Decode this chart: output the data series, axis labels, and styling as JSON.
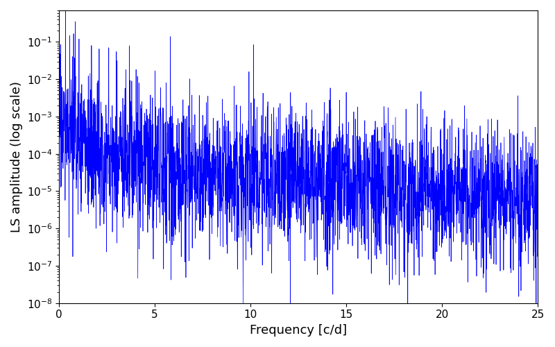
{
  "xlabel": "Frequency [c/d]",
  "ylabel": "LS amplitude (log scale)",
  "xlim": [
    0,
    25
  ],
  "ylim": [
    1e-08,
    0.7
  ],
  "line_color": "blue",
  "line_width": 0.5,
  "background_color": "#ffffff",
  "n_points": 3000,
  "seed": 17,
  "freq_max": 25.0,
  "base_amplitude": 0.0008,
  "decay_power": 1.2,
  "noise_scale": 2.2,
  "xticks": [
    0,
    5,
    10,
    15,
    20,
    25
  ],
  "xlabel_fontsize": 13,
  "ylabel_fontsize": 13,
  "tick_fontsize": 11
}
